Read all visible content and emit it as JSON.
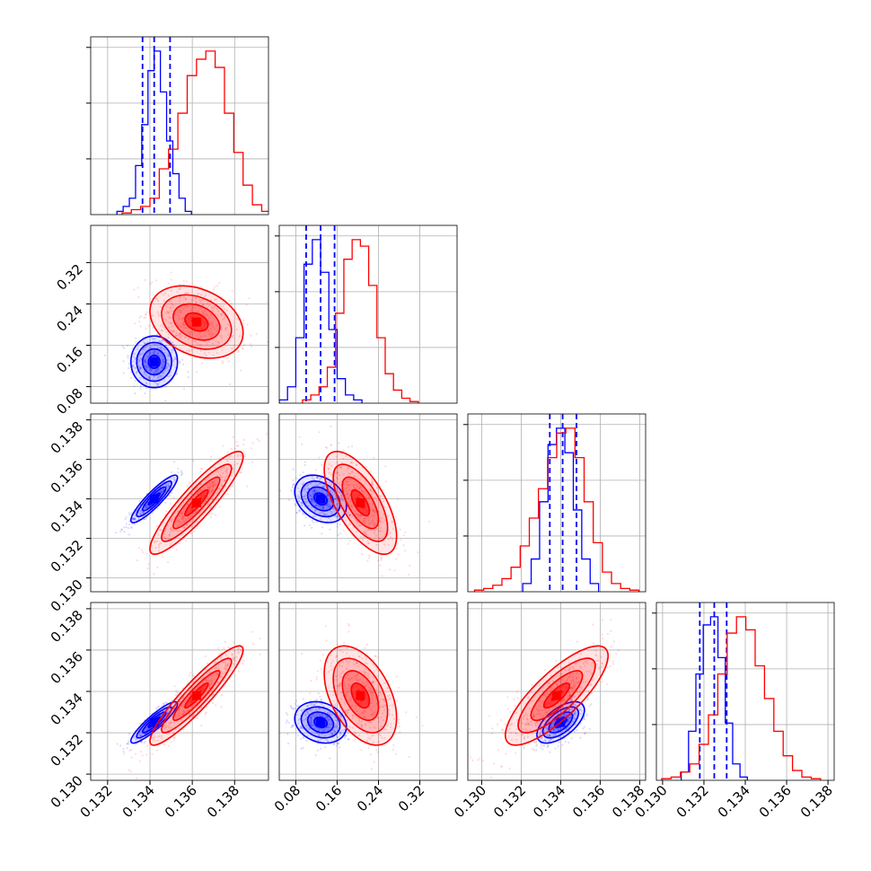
{
  "chart_data": {
    "type": "scatter",
    "title": "",
    "layout": "corner-plot-4x4-lower-triangle",
    "grid": true,
    "legend": "none",
    "parameters": [
      {
        "range": [
          0.1312,
          0.1396
        ],
        "ticks": [
          0.132,
          0.134,
          0.136,
          0.138
        ],
        "tick_labels": [
          "0.132",
          "0.134",
          "0.136",
          "0.138"
        ]
      },
      {
        "range": [
          0.048,
          0.392
        ],
        "ticks": [
          0.08,
          0.16,
          0.24,
          0.32
        ],
        "tick_labels": [
          "0.08",
          "0.16",
          "0.24",
          "0.32"
        ]
      },
      {
        "range": [
          0.1293,
          0.1383
        ],
        "ticks": [
          0.13,
          0.132,
          0.134,
          0.136,
          0.138
        ],
        "tick_labels": [
          "0.130",
          "0.132",
          "0.134",
          "0.136",
          "0.138"
        ]
      },
      {
        "range": [
          0.1297,
          0.1383
        ],
        "ticks": [
          0.13,
          0.132,
          0.134,
          0.136,
          0.138
        ],
        "tick_labels": [
          "0.130",
          "0.132",
          "0.134",
          "0.136",
          "0.138"
        ]
      }
    ],
    "series": [
      {
        "color": "#0000ff",
        "means": [
          0.1342,
          0.128,
          0.134,
          0.1325
        ],
        "sigmas": [
          0.00055,
          0.025,
          0.0006,
          0.0005
        ],
        "quantile_lines": [
          [
            0.13365,
            0.1342,
            0.13495
          ],
          [
            0.1,
            0.128,
            0.155
          ],
          [
            0.13345,
            0.1341,
            0.1348
          ],
          [
            0.1318,
            0.1325,
            0.1331
          ]
        ],
        "histograms": [
          [
            0.02,
            0.05,
            0.1,
            0.3,
            0.55,
            0.88,
            1.0,
            0.75,
            0.45,
            0.25,
            0.1,
            0.02
          ],
          [
            0.02,
            0.1,
            0.4,
            0.85,
            1.0,
            0.8,
            0.45,
            0.15,
            0.05,
            0.02
          ],
          [
            0.05,
            0.2,
            0.55,
            0.9,
            1.0,
            0.85,
            0.5,
            0.2,
            0.05
          ],
          [
            0.05,
            0.3,
            0.65,
            0.95,
            1.0,
            0.75,
            0.35,
            0.1,
            0.02
          ]
        ]
      },
      {
        "color": "#ff0000",
        "means": [
          0.1362,
          0.205,
          0.1338,
          0.1338
        ],
        "sigmas": [
          0.0011,
          0.035,
          0.0013,
          0.0012
        ],
        "histograms": [
          [
            0.01,
            0.03,
            0.05,
            0.1,
            0.28,
            0.4,
            0.62,
            0.85,
            0.95,
            1.0,
            0.9,
            0.62,
            0.38,
            0.18,
            0.06,
            0.02
          ],
          [
            0.02,
            0.05,
            0.1,
            0.22,
            0.55,
            0.88,
            1.0,
            0.96,
            0.72,
            0.4,
            0.18,
            0.08,
            0.03,
            0.01
          ],
          [
            0.01,
            0.02,
            0.04,
            0.08,
            0.15,
            0.28,
            0.45,
            0.63,
            0.82,
            0.97,
            1.0,
            0.82,
            0.55,
            0.3,
            0.12,
            0.05,
            0.02,
            0.01
          ],
          [
            0.01,
            0.02,
            0.05,
            0.1,
            0.22,
            0.4,
            0.65,
            0.9,
            1.0,
            0.92,
            0.7,
            0.5,
            0.3,
            0.15,
            0.06,
            0.02,
            0.01
          ]
        ]
      }
    ],
    "correlations": {
      "1-0": {
        "blue": 0.0,
        "red": -0.3
      },
      "2-0": {
        "blue": 0.9,
        "red": 0.9
      },
      "2-1": {
        "blue": -0.3,
        "red": -0.65
      },
      "3-0": {
        "blue": 0.9,
        "red": 0.92
      },
      "3-1": {
        "blue": -0.2,
        "red": -0.45
      },
      "3-2": {
        "blue": 0.6,
        "red": 0.8
      }
    }
  }
}
